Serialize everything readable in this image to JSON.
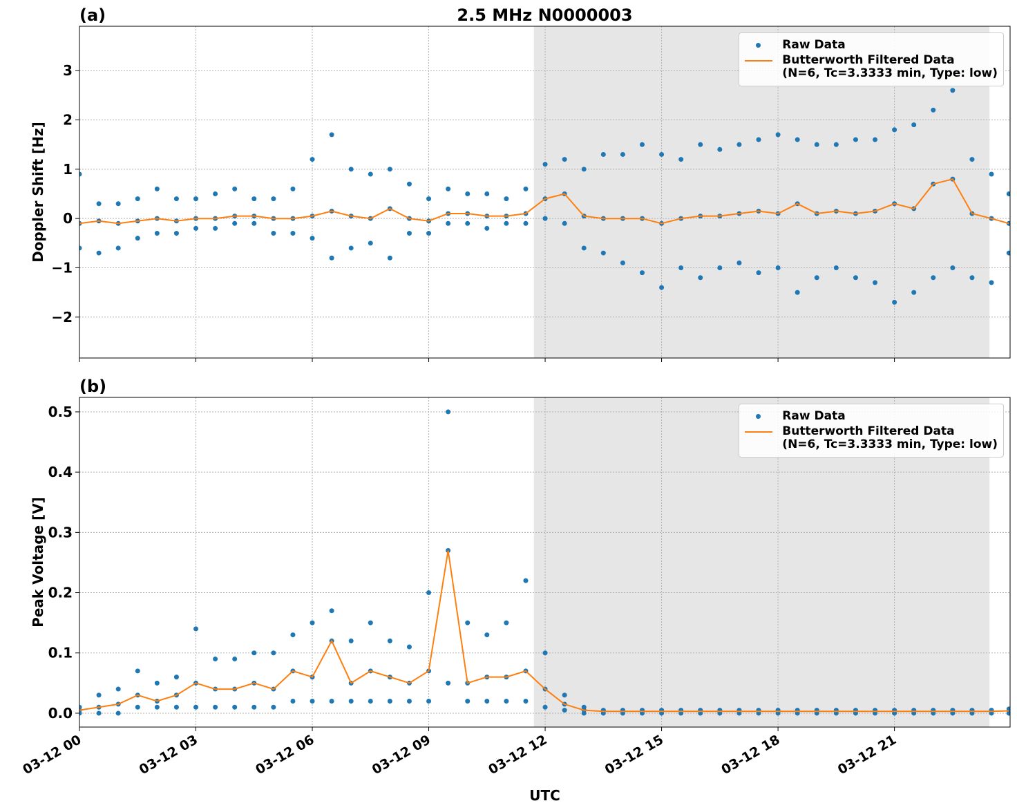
{
  "chart_data": [
    {
      "type": "scatter",
      "panel_label": "(a)",
      "title": "2.5 MHz N0000003",
      "ylabel": "Doppler Shift [Hz]",
      "xlim": [
        0,
        23.98
      ],
      "ylim": [
        -2.83,
        3.9
      ],
      "xticks": [
        0,
        3,
        6,
        9,
        12,
        15,
        18,
        21
      ],
      "yticks": [
        {
          "value": -2,
          "label": "−2"
        },
        {
          "value": -1,
          "label": "−1"
        },
        0,
        1,
        2,
        3
      ],
      "grid": true,
      "shaded_span": [
        11.71,
        23.45
      ],
      "legend": "upper right",
      "series": [
        {
          "name": "Raw Data",
          "mode": "markers",
          "color": "#1f77b4",
          "x": [
            0,
            0,
            0,
            0.5,
            0.5,
            0.5,
            1,
            1,
            1,
            1.5,
            1.5,
            1.5,
            2,
            2,
            2,
            2.5,
            2.5,
            2.5,
            3,
            3,
            3,
            3.5,
            3.5,
            3.5,
            4,
            4,
            4,
            4.5,
            4.5,
            4.5,
            5,
            5,
            5,
            5.5,
            5.5,
            5.5,
            6,
            6,
            6,
            6.5,
            6.5,
            6.5,
            7,
            7,
            7,
            7.5,
            7.5,
            7.5,
            8,
            8,
            8,
            8.5,
            8.5,
            8.5,
            9,
            9,
            9,
            9.5,
            9.5,
            9.5,
            10,
            10,
            10,
            10.5,
            10.5,
            10.5,
            11,
            11,
            11,
            11.5,
            11.5,
            11.5,
            12,
            12,
            12,
            12.5,
            12.5,
            12.5,
            13,
            13,
            13,
            13.5,
            13.5,
            13.5,
            14,
            14,
            14,
            14.5,
            14.5,
            14.5,
            15,
            15,
            15,
            15.5,
            15.5,
            15.5,
            16,
            16,
            16,
            16.5,
            16.5,
            16.5,
            17,
            17,
            17,
            17.5,
            17.5,
            17.5,
            18,
            18,
            18,
            18.5,
            18.5,
            18.5,
            19,
            19,
            19,
            19.5,
            19.5,
            19.5,
            20,
            20,
            20,
            20.5,
            20.5,
            20.5,
            21,
            21,
            21,
            21.5,
            21.5,
            21.5,
            22,
            22,
            22,
            22.5,
            22.5,
            22.5,
            23,
            23,
            23,
            23.5,
            23.5,
            23.5,
            23.95,
            23.95,
            23.95
          ],
          "values": [
            -0.6,
            -0.1,
            0.9,
            -0.7,
            -0.05,
            0.3,
            -0.6,
            -0.1,
            0.3,
            -0.4,
            -0.05,
            0.4,
            -0.3,
            0,
            0.6,
            -0.3,
            -0.05,
            0.4,
            -0.2,
            0,
            0.4,
            -0.2,
            0,
            0.5,
            -0.1,
            0.05,
            0.6,
            -0.1,
            0.05,
            0.4,
            -0.3,
            0,
            0.4,
            -0.3,
            0,
            0.6,
            -0.4,
            0.05,
            1.2,
            -0.8,
            0.15,
            1.7,
            -0.6,
            0.05,
            1,
            -0.5,
            0,
            0.9,
            -0.8,
            0.2,
            1,
            -0.3,
            0,
            0.7,
            -0.3,
            -0.05,
            0.4,
            -0.1,
            0.1,
            0.6,
            -0.1,
            0.1,
            0.5,
            -0.2,
            0.05,
            0.5,
            -0.1,
            0.05,
            0.4,
            -0.1,
            0.1,
            0.6,
            0,
            0.4,
            1.1,
            -0.1,
            0.5,
            1.2,
            -0.6,
            0.05,
            1,
            -0.7,
            0,
            1.3,
            -0.9,
            0,
            1.3,
            -1.1,
            0,
            1.5,
            -1.4,
            -0.1,
            1.3,
            -1,
            0,
            1.2,
            -1.2,
            0.05,
            1.5,
            -1,
            0.05,
            1.4,
            -0.9,
            0.1,
            1.5,
            -1.1,
            0.15,
            1.6,
            -1,
            0.1,
            1.7,
            -1.5,
            0.3,
            1.6,
            -1.2,
            0.1,
            1.5,
            -1,
            0.15,
            1.5,
            -1.2,
            0.1,
            1.6,
            -1.3,
            0.15,
            1.6,
            -1.7,
            0.3,
            1.8,
            -1.5,
            0.2,
            1.9,
            -1.2,
            0.7,
            2.2,
            -1,
            0.8,
            2.6,
            -1.2,
            0.1,
            1.2,
            -1.3,
            0,
            0.9,
            -0.7,
            -0.1,
            0.5
          ]
        },
        {
          "name": "Butterworth Filtered Data\n(N=6, Tc=3.3333 min, Type: low)",
          "mode": "lines",
          "color": "#ff7f0e",
          "x": [
            0,
            0.5,
            1,
            1.5,
            2,
            2.5,
            3,
            3.5,
            4,
            4.5,
            5,
            5.5,
            6,
            6.5,
            7,
            7.5,
            8,
            8.5,
            9,
            9.5,
            10,
            10.5,
            11,
            11.5,
            12,
            12.5,
            13,
            13.5,
            14,
            14.5,
            15,
            15.5,
            16,
            16.5,
            17,
            17.5,
            18,
            18.5,
            19,
            19.5,
            20,
            20.5,
            21,
            21.5,
            22,
            22.5,
            23,
            23.5,
            23.95
          ],
          "values": [
            -0.1,
            -0.05,
            -0.1,
            -0.05,
            0,
            -0.05,
            0,
            0,
            0.05,
            0.05,
            0,
            0,
            0.05,
            0.15,
            0.05,
            0,
            0.2,
            0,
            -0.05,
            0.1,
            0.1,
            0.05,
            0.05,
            0.1,
            0.4,
            0.5,
            0.05,
            0,
            0,
            0,
            -0.1,
            0,
            0.05,
            0.05,
            0.1,
            0.15,
            0.1,
            0.3,
            0.1,
            0.15,
            0.1,
            0.15,
            0.3,
            0.2,
            0.7,
            0.8,
            0.1,
            0,
            -0.1
          ]
        }
      ]
    },
    {
      "type": "scatter",
      "panel_label": "(b)",
      "ylabel": "Peak Voltage [V]",
      "xlabel": "UTC",
      "xlim": [
        0,
        23.98
      ],
      "ylim": [
        -0.023,
        0.524
      ],
      "xticks": [
        {
          "value": 0,
          "label": "03-12 00"
        },
        {
          "value": 3,
          "label": "03-12 03"
        },
        {
          "value": 6,
          "label": "03-12 06"
        },
        {
          "value": 9,
          "label": "03-12 09"
        },
        {
          "value": 12,
          "label": "03-12 12"
        },
        {
          "value": 15,
          "label": "03-12 15"
        },
        {
          "value": 18,
          "label": "03-12 18"
        },
        {
          "value": 21,
          "label": "03-12 21"
        }
      ],
      "yticks": [
        {
          "value": 0,
          "label": "0.0"
        },
        0.1,
        0.2,
        0.3,
        0.4,
        0.5
      ],
      "grid": true,
      "shaded_span": [
        11.71,
        23.45
      ],
      "legend": "upper right",
      "series": [
        {
          "name": "Raw Data",
          "mode": "markers",
          "color": "#1f77b4",
          "x": [
            0,
            0,
            0,
            0.5,
            0.5,
            0.5,
            1,
            1,
            1,
            1.5,
            1.5,
            1.5,
            2,
            2,
            2,
            2.5,
            2.5,
            2.5,
            3,
            3,
            3,
            3.5,
            3.5,
            3.5,
            4,
            4,
            4,
            4.5,
            4.5,
            4.5,
            5,
            5,
            5,
            5.5,
            5.5,
            5.5,
            6,
            6,
            6,
            6.5,
            6.5,
            6.5,
            7,
            7,
            7,
            7.5,
            7.5,
            7.5,
            8,
            8,
            8,
            8.5,
            8.5,
            8.5,
            9,
            9,
            9,
            9.5,
            9.5,
            9.5,
            10,
            10,
            10,
            10.5,
            10.5,
            10.5,
            11,
            11,
            11,
            11.5,
            11.5,
            11.5,
            12,
            12,
            12,
            12.5,
            12.5,
            12.5,
            13,
            13,
            13,
            13.5,
            13.5,
            13.5,
            14,
            14,
            14,
            14.5,
            14.5,
            14.5,
            15,
            15,
            15,
            15.5,
            15.5,
            15.5,
            16,
            16,
            16,
            16.5,
            16.5,
            16.5,
            17,
            17,
            17,
            17.5,
            17.5,
            17.5,
            18,
            18,
            18,
            18.5,
            18.5,
            18.5,
            19,
            19,
            19,
            19.5,
            19.5,
            19.5,
            20,
            20,
            20,
            20.5,
            20.5,
            20.5,
            21,
            21,
            21,
            21.5,
            21.5,
            21.5,
            22,
            22,
            22,
            22.5,
            22.5,
            22.5,
            23,
            23,
            23,
            23.5,
            23.5,
            23.5,
            23.95,
            23.95,
            23.95
          ],
          "values": [
            0,
            0.005,
            0.01,
            0,
            0.01,
            0.03,
            0,
            0.015,
            0.04,
            0.01,
            0.03,
            0.07,
            0.01,
            0.02,
            0.05,
            0.01,
            0.03,
            0.06,
            0.01,
            0.05,
            0.14,
            0.01,
            0.04,
            0.09,
            0.01,
            0.04,
            0.09,
            0.01,
            0.05,
            0.1,
            0.01,
            0.04,
            0.1,
            0.02,
            0.07,
            0.13,
            0.02,
            0.06,
            0.15,
            0.02,
            0.12,
            0.17,
            0.02,
            0.05,
            0.12,
            0.02,
            0.07,
            0.15,
            0.02,
            0.06,
            0.12,
            0.02,
            0.05,
            0.11,
            0.02,
            0.07,
            0.2,
            0.05,
            0.27,
            0.5,
            0.02,
            0.05,
            0.15,
            0.02,
            0.06,
            0.13,
            0.02,
            0.06,
            0.15,
            0.02,
            0.07,
            0.22,
            0.01,
            0.04,
            0.1,
            0.005,
            0.015,
            0.03,
            0,
            0.005,
            0.01,
            0,
            0.003,
            0.005,
            0,
            0.003,
            0.005,
            0,
            0.003,
            0.005,
            0,
            0.003,
            0.005,
            0,
            0.003,
            0.005,
            0,
            0.003,
            0.005,
            0,
            0.003,
            0.005,
            0,
            0.003,
            0.005,
            0,
            0.003,
            0.005,
            0,
            0.003,
            0.005,
            0,
            0.003,
            0.005,
            0,
            0.003,
            0.005,
            0,
            0.003,
            0.005,
            0,
            0.003,
            0.005,
            0,
            0.003,
            0.005,
            0,
            0.003,
            0.005,
            0,
            0.003,
            0.005,
            0,
            0.003,
            0.005,
            0,
            0.003,
            0.005,
            0,
            0.003,
            0.005,
            0,
            0.003,
            0.005,
            0,
            0.004,
            0.007
          ]
        },
        {
          "name": "Butterworth Filtered Data\n(N=6, Tc=3.3333 min, Type: low)",
          "mode": "lines",
          "color": "#ff7f0e",
          "x": [
            0,
            0.5,
            1,
            1.5,
            2,
            2.5,
            3,
            3.5,
            4,
            4.5,
            5,
            5.5,
            6,
            6.5,
            7,
            7.5,
            8,
            8.5,
            9,
            9.5,
            10,
            10.5,
            11,
            11.5,
            12,
            12.5,
            13,
            13.5,
            14,
            14.5,
            15,
            15.5,
            16,
            16.5,
            17,
            17.5,
            18,
            18.5,
            19,
            19.5,
            20,
            20.5,
            21,
            21.5,
            22,
            22.5,
            23,
            23.5,
            23.95
          ],
          "values": [
            0.005,
            0.01,
            0.015,
            0.03,
            0.02,
            0.03,
            0.05,
            0.04,
            0.04,
            0.05,
            0.04,
            0.07,
            0.06,
            0.12,
            0.05,
            0.07,
            0.06,
            0.05,
            0.07,
            0.27,
            0.05,
            0.06,
            0.06,
            0.07,
            0.04,
            0.015,
            0.005,
            0.003,
            0.003,
            0.003,
            0.003,
            0.003,
            0.003,
            0.003,
            0.003,
            0.003,
            0.003,
            0.003,
            0.003,
            0.003,
            0.003,
            0.003,
            0.003,
            0.003,
            0.003,
            0.003,
            0.003,
            0.003,
            0.004
          ]
        }
      ]
    }
  ]
}
